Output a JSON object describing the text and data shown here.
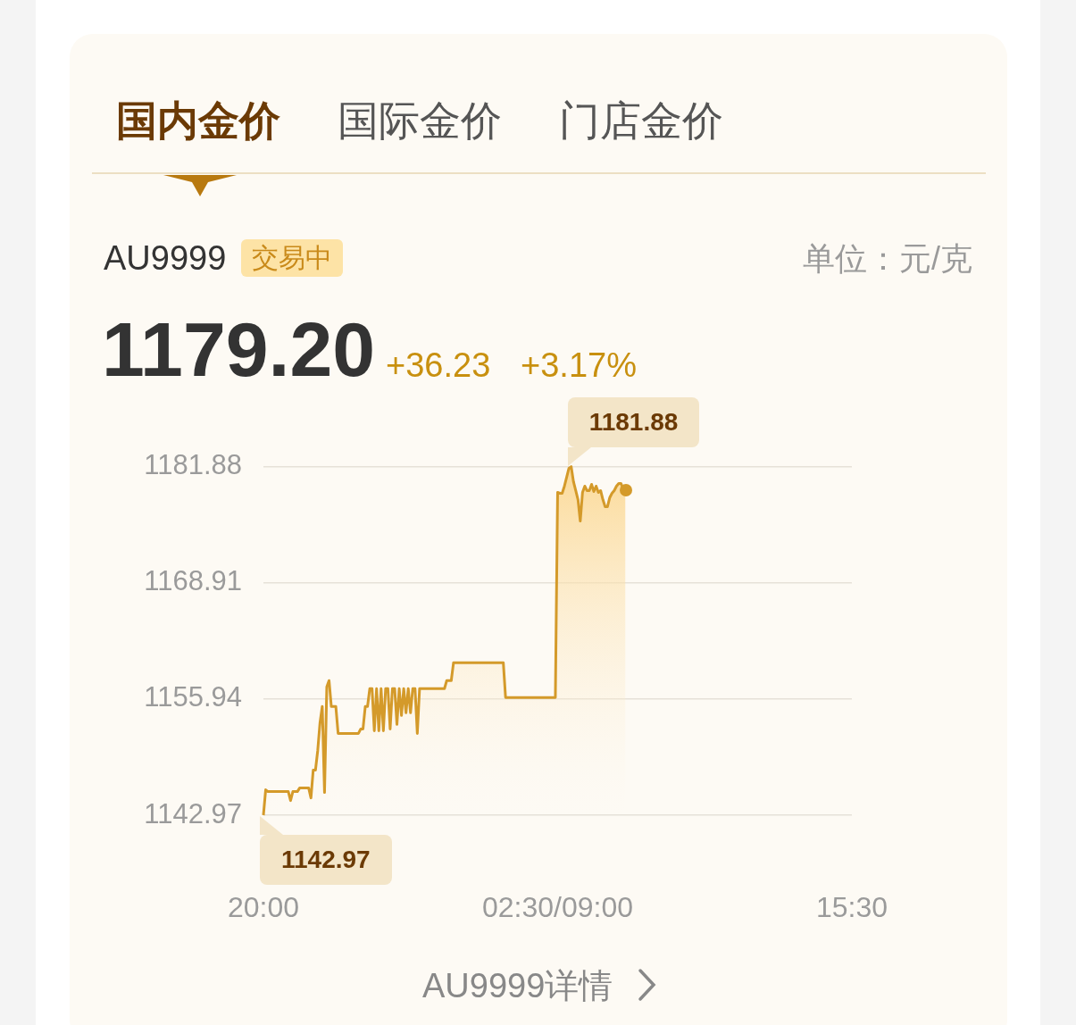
{
  "chart_data": {
    "type": "area",
    "title": "AU9999",
    "annotations": [
      "国内金价",
      "国际金价",
      "门店金价",
      "交易中",
      "1179.20",
      "+36.23",
      "+3.17%",
      "AU9999详情",
      "1181.88",
      "1142.97",
      "单位：元/克"
    ],
    "color": "#d49a2a",
    "grid": "y",
    "ylim": [
      1142.97,
      1181.88
    ],
    "yticks": [
      1142.97,
      1155.94,
      1168.91,
      1181.88
    ],
    "categories": [
      "20:00",
      null,
      null,
      null,
      null,
      null,
      null,
      null,
      null,
      null,
      null,
      null,
      null,
      null,
      null,
      null,
      null,
      null,
      null,
      null,
      null,
      null,
      null,
      null,
      null,
      null,
      null,
      null,
      null,
      null,
      null,
      null,
      null,
      null,
      null,
      null,
      null,
      null,
      null,
      null,
      null,
      null,
      null,
      null,
      null,
      null,
      null,
      null,
      null,
      null,
      null,
      null,
      null,
      null,
      null,
      null,
      null,
      null,
      null,
      null,
      null,
      null,
      null,
      null,
      null,
      null,
      null,
      null,
      null,
      null,
      null,
      null,
      null,
      null,
      null,
      null,
      null,
      null,
      null,
      null,
      null,
      null,
      null,
      null,
      null,
      null,
      null,
      null,
      null,
      null,
      null,
      null,
      null,
      null,
      null,
      null,
      null,
      null,
      null,
      null,
      null,
      null,
      null,
      null,
      null,
      null,
      null,
      null,
      null,
      null,
      null,
      null,
      null,
      null,
      null,
      null,
      null,
      null,
      null,
      null,
      null,
      null,
      null,
      null,
      null,
      null,
      null,
      null,
      null,
      null,
      "02:30/09:00",
      null,
      null,
      null,
      null,
      null,
      null,
      null,
      null,
      null,
      null,
      null,
      null,
      null,
      null,
      null,
      null,
      null,
      null,
      null,
      null,
      null,
      null,
      null,
      null,
      null,
      null,
      null,
      null,
      null,
      null,
      null,
      null,
      null,
      null,
      null,
      null,
      null,
      null,
      null,
      null,
      null,
      null,
      null,
      null,
      null,
      null,
      null,
      null,
      null,
      null,
      null,
      null,
      null,
      null,
      null,
      null,
      null,
      null,
      null,
      null,
      null,
      null,
      null,
      null,
      null,
      null,
      null,
      null,
      null,
      null,
      null,
      null,
      null,
      null,
      null,
      null,
      null,
      null,
      null,
      null,
      null,
      null,
      null,
      null,
      null,
      null,
      null,
      null,
      null,
      null,
      null,
      null,
      null,
      null,
      null,
      null,
      null,
      null,
      null,
      null,
      null,
      null,
      null,
      null,
      null,
      null,
      null,
      null,
      null,
      null,
      null,
      null,
      null,
      null,
      null,
      null,
      null,
      null,
      null,
      null,
      null,
      null,
      null,
      null,
      null,
      null,
      null,
      null,
      null,
      "15:30"
    ],
    "values": [
      1142.97,
      1145.8,
      1145.6,
      1145.6,
      1145.6,
      1145.6,
      1145.6,
      1145.6,
      1145.6,
      1145.6,
      1145.6,
      1145.6,
      1144.6,
      1145.6,
      1145.6,
      1145.6,
      1146.0,
      1146.0,
      1146.0,
      1146.0,
      1146.0,
      1144.9,
      1148.0,
      1148.0,
      1150.2,
      1153.3,
      1155.1,
      1145.5,
      1157.3,
      1158.0,
      1155.1,
      1155.1,
      1155.1,
      1152.1,
      1152.1,
      1152.1,
      1152.1,
      1152.1,
      1152.1,
      1152.1,
      1152.1,
      1152.1,
      1152.1,
      1152.6,
      1152.6,
      1155.1,
      1155.1,
      1157.1,
      1157.1,
      1152.4,
      1157.1,
      1152.4,
      1157.1,
      1152.4,
      1157.1,
      1157.1,
      1152.6,
      1157.1,
      1157.1,
      1153.1,
      1157.1,
      1154.1,
      1157.1,
      1154.4,
      1157.1,
      1154.4,
      1157.1,
      1157.1,
      1152.1,
      1157.1,
      1157.1,
      1157.1,
      1157.1,
      1157.1,
      1157.1,
      1157.1,
      1157.1,
      1157.1,
      1157.1,
      1157.1,
      1157.1,
      1158.0,
      1158.0,
      1158.0,
      1160.0,
      1160.0,
      1160.0,
      1160.0,
      1160.0,
      1160.0,
      1160.0,
      1160.0,
      1160.0,
      1160.0,
      1160.0,
      1160.0,
      1160.0,
      1160.0,
      1160.0,
      1160.0,
      1160.0,
      1160.0,
      1160.0,
      1160.0,
      1160.0,
      1160.0,
      1160.0,
      1156.1,
      1156.1,
      1156.1,
      1156.1,
      1156.1,
      1156.1,
      1156.1,
      1156.1,
      1156.1,
      1156.1,
      1156.1,
      1156.1,
      1156.1,
      1156.1,
      1156.1,
      1156.1,
      1156.1,
      1156.1,
      1156.1,
      1156.1,
      1156.1,
      1156.1,
      1156.1,
      1179.0,
      1178.9,
      1178.9,
      1179.7,
      1180.7,
      1181.7,
      1181.88,
      1180.2,
      1179.2,
      1178.2,
      1175.8,
      1179.0,
      1179.7,
      1179.2,
      1179.2,
      1179.9,
      1179.1,
      1179.7,
      1179.0,
      1179.2,
      1178.2,
      1177.4,
      1177.4,
      1178.4,
      1178.9,
      1179.2,
      1179.7,
      1180.0,
      1180.0,
      1179.4,
      1179.2,
      null,
      null,
      null,
      null,
      null,
      null,
      null,
      null,
      null,
      null,
      null,
      null,
      null,
      null,
      null,
      null,
      null,
      null,
      null,
      null,
      null,
      null,
      null,
      null,
      null,
      null,
      null,
      null,
      null,
      null,
      null,
      null,
      null,
      null,
      null,
      null,
      null,
      null,
      null,
      null,
      null,
      null,
      null,
      null,
      null,
      null,
      null,
      null,
      null,
      null,
      null,
      null,
      null,
      null,
      null,
      null,
      null,
      null,
      null,
      null,
      null,
      null,
      null,
      null,
      null,
      null,
      null,
      null,
      null,
      null,
      null,
      null,
      null,
      null,
      null,
      null,
      null,
      null,
      null,
      null,
      null,
      null,
      null,
      null,
      null,
      null,
      null,
      null,
      null,
      null,
      null,
      null,
      null,
      null,
      null,
      null,
      null,
      null,
      null,
      null
    ]
  }
}
